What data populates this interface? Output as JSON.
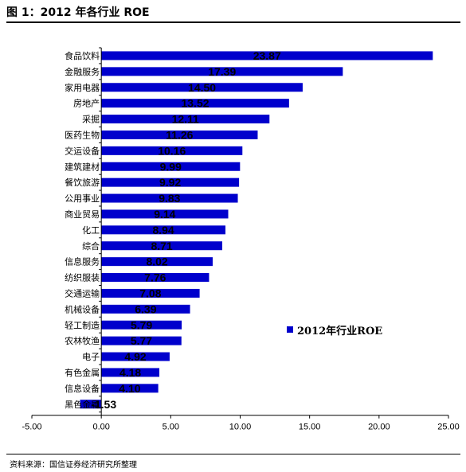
{
  "header": {
    "title": "图 1：2012 年各行业 ROE"
  },
  "footer": {
    "source": "资料来源：国信证券经济研究所整理"
  },
  "chart_data": {
    "type": "bar",
    "orientation": "horizontal",
    "title": "",
    "xlabel": "",
    "ylabel": "",
    "categories": [
      "食品饮料",
      "金融服务",
      "家用电器",
      "房地产",
      "采掘",
      "医药生物",
      "交运设备",
      "建筑建材",
      "餐饮旅游",
      "公用事业",
      "商业贸易",
      "化工",
      "综合",
      "信息服务",
      "纺织服装",
      "交通运输",
      "机械设备",
      "轻工制造",
      "农林牧渔",
      "电子",
      "有色金属",
      "信息设备",
      "黑色金属"
    ],
    "series": [
      {
        "name": "2012年行业ROE",
        "values": [
          23.87,
          17.39,
          14.5,
          13.52,
          12.11,
          11.26,
          10.16,
          9.99,
          9.92,
          9.83,
          9.14,
          8.94,
          8.71,
          8.02,
          7.76,
          7.08,
          6.39,
          5.79,
          5.77,
          4.92,
          4.18,
          4.1,
          -1.53
        ],
        "color": "#0000CC"
      }
    ],
    "value_labels": [
      "23.87",
      "17.39",
      "14.50",
      "13.52",
      "12.11",
      "11.26",
      "10.16",
      "9.99",
      "9.92",
      "9.83",
      "9.14",
      "8.94",
      "8.71",
      "8.02",
      "7.76",
      "7.08",
      "6.39",
      "5.79",
      "5.77",
      "4.92",
      "4.18",
      "4.10",
      "-1.53"
    ],
    "xlim": [
      -5,
      25
    ],
    "xticks": [
      "-5.00",
      "0.00",
      "5.00",
      "10.00",
      "15.00",
      "20.00",
      "25.00"
    ],
    "legend_position": "right",
    "grid": false
  }
}
